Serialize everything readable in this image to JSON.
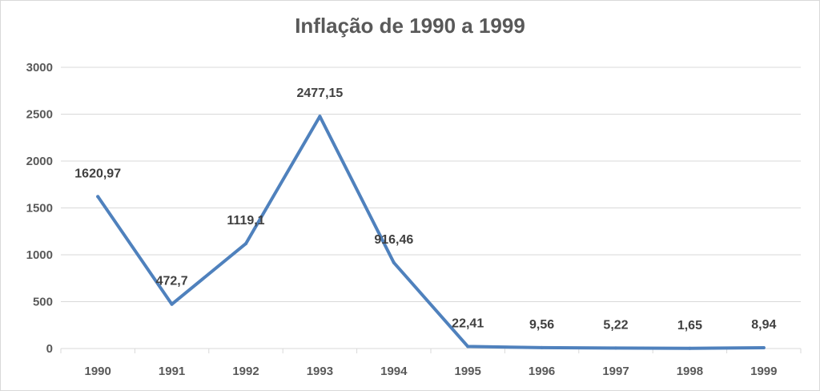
{
  "chart_data": {
    "type": "line",
    "title": "Inflação de 1990 a 1999",
    "categories": [
      "1990",
      "1991",
      "1992",
      "1993",
      "1994",
      "1995",
      "1996",
      "1997",
      "1998",
      "1999"
    ],
    "series": [
      {
        "values": [
          1620.97,
          472.7,
          1119.1,
          2477.15,
          916.46,
          22.41,
          9.56,
          5.22,
          1.65,
          8.94
        ],
        "value_labels": [
          "1620,97",
          "472,7",
          "1119,1",
          "2477,15",
          "916,46",
          "22,41",
          "9,56",
          "5,22",
          "1,65",
          "8,94"
        ],
        "color": "#4f81bd"
      }
    ],
    "ylim": [
      0,
      3000
    ],
    "yticks": [
      0,
      500,
      1000,
      1500,
      2000,
      2500,
      3000
    ],
    "ytick_labels": [
      "0",
      "500",
      "1000",
      "1500",
      "2000",
      "2500",
      "3000"
    ],
    "grid": true,
    "legend": "none",
    "colors": {
      "line": "#4f81bd",
      "grid": "#d9d9d9",
      "text": "#595959"
    }
  }
}
